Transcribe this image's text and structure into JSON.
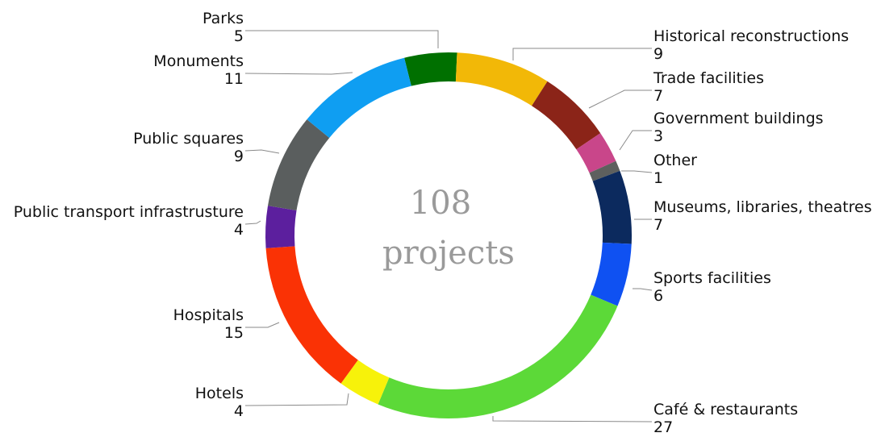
{
  "chart_data": {
    "type": "pie",
    "donut": true,
    "center_text": [
      "108",
      "projects"
    ],
    "total": 108,
    "legend": "none",
    "slices": [
      {
        "label": "Parks",
        "value": 5,
        "color": "#007000"
      },
      {
        "label": "Historical reconstructions",
        "value": 9,
        "color": "#f2b807"
      },
      {
        "label": "Trade facilities",
        "value": 7,
        "color": "#8b2418"
      },
      {
        "label": "Government buildings",
        "value": 3,
        "color": "#c9468a"
      },
      {
        "label": "Other",
        "value": 1,
        "color": "#5e605e"
      },
      {
        "label": "Museums, libraries, theatres",
        "value": 7,
        "color": "#0c2a5e"
      },
      {
        "label": "Sports facilities",
        "value": 6,
        "color": "#0f51f2"
      },
      {
        "label": "Café & restaurants",
        "value": 27,
        "color": "#5cd938"
      },
      {
        "label": "Hotels",
        "value": 4,
        "color": "#f7f20a"
      },
      {
        "label": "Hospitals",
        "value": 15,
        "color": "#fa3205"
      },
      {
        "label": "Public transport infrastrusture",
        "value": 4,
        "color": "#5c1f9e"
      },
      {
        "label": "Public squares",
        "value": 9,
        "color": "#5a5e5e"
      },
      {
        "label": "Monuments",
        "value": 11,
        "color": "#0f9ef2"
      }
    ]
  }
}
